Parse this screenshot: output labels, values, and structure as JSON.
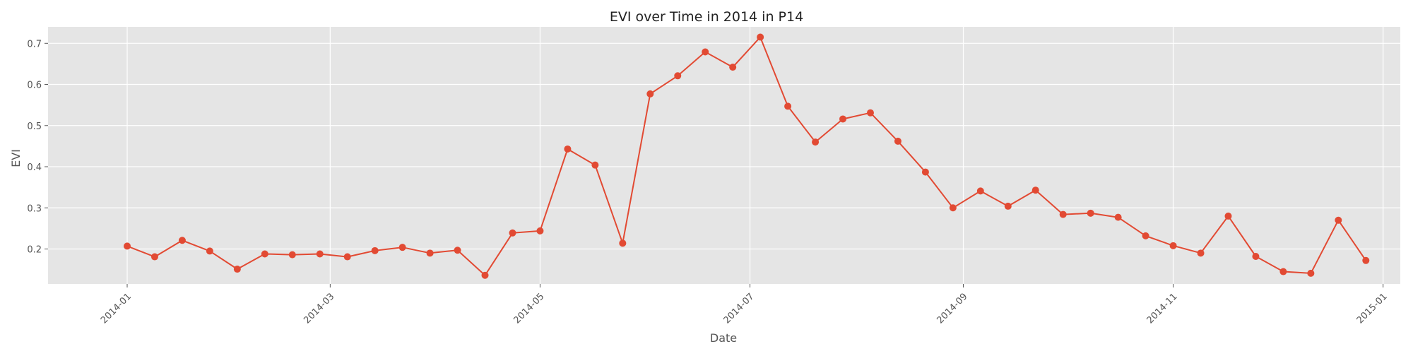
{
  "chart_data": {
    "type": "line",
    "title": "EVI over Time in 2014 in P14",
    "xlabel": "Date",
    "ylabel": "EVI",
    "x_axis_kind": "date",
    "xlim": [
      "2013-12-09",
      "2015-01-06"
    ],
    "ylim": [
      0.115,
      0.74
    ],
    "x_ticks": [
      "2014-01",
      "2014-03",
      "2014-05",
      "2014-07",
      "2014-09",
      "2014-11",
      "2015-01"
    ],
    "x_tick_dates": [
      "2014-01-01",
      "2014-03-01",
      "2014-05-01",
      "2014-07-01",
      "2014-09-01",
      "2014-11-01",
      "2015-01-01"
    ],
    "y_ticks": [
      0.2,
      0.3,
      0.4,
      0.5,
      0.6,
      0.7
    ],
    "y_tick_labels": [
      "0.2",
      "0.3",
      "0.4",
      "0.5",
      "0.6",
      "0.7"
    ],
    "grid": true,
    "legend": false,
    "colors": {
      "line": "#E24A33",
      "plot_background": "#E5E5E5",
      "grid": "#FFFFFF",
      "text": "#555555",
      "title": "#222222"
    },
    "series": [
      {
        "x": [
          "2014-01-01",
          "2014-01-09",
          "2014-01-17",
          "2014-01-25",
          "2014-02-02",
          "2014-02-10",
          "2014-02-18",
          "2014-02-26",
          "2014-03-06",
          "2014-03-14",
          "2014-03-22",
          "2014-03-30",
          "2014-04-07",
          "2014-04-15",
          "2014-04-23",
          "2014-05-01",
          "2014-05-09",
          "2014-05-17",
          "2014-05-25",
          "2014-06-02",
          "2014-06-10",
          "2014-06-18",
          "2014-06-26",
          "2014-07-04",
          "2014-07-12",
          "2014-07-20",
          "2014-07-28",
          "2014-08-05",
          "2014-08-13",
          "2014-08-21",
          "2014-08-29",
          "2014-09-06",
          "2014-09-14",
          "2014-09-22",
          "2014-09-30",
          "2014-10-08",
          "2014-10-16",
          "2014-10-24",
          "2014-11-01",
          "2014-11-09",
          "2014-11-17",
          "2014-11-25",
          "2014-12-03",
          "2014-12-11",
          "2014-12-19",
          "2014-12-27"
        ],
        "y": [
          0.207,
          0.181,
          0.221,
          0.195,
          0.151,
          0.188,
          0.186,
          0.188,
          0.181,
          0.196,
          0.204,
          0.19,
          0.197,
          0.136,
          0.239,
          0.244,
          0.443,
          0.404,
          0.214,
          0.577,
          0.621,
          0.679,
          0.642,
          0.715,
          0.547,
          0.46,
          0.516,
          0.531,
          0.462,
          0.387,
          0.3,
          0.341,
          0.304,
          0.343,
          0.284,
          0.287,
          0.277,
          0.232,
          0.208,
          0.19,
          0.28,
          0.182,
          0.145,
          0.141,
          0.27,
          0.172
        ]
      }
    ]
  }
}
